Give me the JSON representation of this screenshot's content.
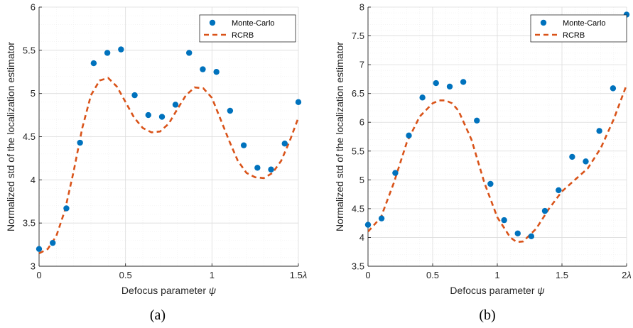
{
  "colors": {
    "monte_carlo": "#0072BD",
    "rcrb": "#D95319",
    "grid_major": "#dcdcdc",
    "grid_minor": "#efefef",
    "axis": "#262626"
  },
  "chart_data": [
    {
      "type": "scatter",
      "caption": "(a)",
      "xlabel": "Defocus parameter ψ",
      "ylabel": "Normalized std of the localization estimator",
      "xlim": [
        0,
        1.5
      ],
      "ylim": [
        3,
        6
      ],
      "xticks": [
        0,
        0.5,
        1,
        1.5
      ],
      "xtick_labels": [
        "0",
        "0.5",
        "1",
        "1.5λ"
      ],
      "yticks": [
        3,
        3.5,
        4,
        4.5,
        5,
        5.5,
        6
      ],
      "ytick_labels": [
        "3",
        "3.5",
        "4",
        "4.5",
        "5",
        "5.5",
        "6"
      ],
      "grid": true,
      "minor_grid": true,
      "legend_position": "top-right",
      "series": [
        {
          "name": "Monte-Carlo",
          "kind": "markers",
          "x": [
            0,
            0.079,
            0.158,
            0.237,
            0.316,
            0.395,
            0.474,
            0.553,
            0.632,
            0.711,
            0.789,
            0.868,
            0.947,
            1.026,
            1.105,
            1.184,
            1.263,
            1.342,
            1.421,
            1.5
          ],
          "y": [
            3.2,
            3.27,
            3.67,
            4.43,
            5.35,
            5.47,
            5.51,
            4.98,
            4.75,
            4.73,
            4.87,
            5.47,
            5.28,
            5.25,
            4.8,
            4.4,
            4.14,
            4.12,
            4.42,
            4.9
          ]
        },
        {
          "name": "RCRB",
          "kind": "dashed-line",
          "x": [
            0,
            0.05,
            0.1,
            0.15,
            0.2,
            0.25,
            0.3,
            0.35,
            0.4,
            0.45,
            0.5,
            0.55,
            0.6,
            0.65,
            0.7,
            0.75,
            0.8,
            0.85,
            0.9,
            0.95,
            1.0,
            1.05,
            1.1,
            1.15,
            1.2,
            1.25,
            1.3,
            1.35,
            1.4,
            1.45,
            1.5
          ],
          "y": [
            3.15,
            3.2,
            3.35,
            3.65,
            4.1,
            4.6,
            4.98,
            5.15,
            5.18,
            5.08,
            4.9,
            4.72,
            4.6,
            4.55,
            4.56,
            4.65,
            4.82,
            4.98,
            5.07,
            5.06,
            4.95,
            4.7,
            4.45,
            4.22,
            4.08,
            4.03,
            4.02,
            4.08,
            4.22,
            4.45,
            4.72
          ]
        }
      ]
    },
    {
      "type": "scatter",
      "caption": "(b)",
      "xlabel": "Defocus parameter ψ",
      "ylabel": "Normalized std of the localization estimator",
      "xlim": [
        0,
        2
      ],
      "ylim": [
        3.5,
        8
      ],
      "xticks": [
        0,
        0.5,
        1,
        1.5,
        2
      ],
      "xtick_labels": [
        "0",
        "0.5",
        "1",
        "1.5",
        "2λ"
      ],
      "yticks": [
        3.5,
        4,
        4.5,
        5,
        5.5,
        6,
        6.5,
        7,
        7.5,
        8
      ],
      "ytick_labels": [
        "3.5",
        "4",
        "4.5",
        "5",
        "5.5",
        "6",
        "6.5",
        "7",
        "7.5",
        "8"
      ],
      "grid": true,
      "minor_grid": true,
      "legend_position": "top-right",
      "series": [
        {
          "name": "Monte-Carlo",
          "kind": "markers",
          "x": [
            0,
            0.105,
            0.211,
            0.316,
            0.421,
            0.526,
            0.632,
            0.737,
            0.842,
            0.947,
            1.053,
            1.158,
            1.263,
            1.368,
            1.474,
            1.579,
            1.684,
            1.789,
            1.895,
            2.0
          ],
          "y": [
            4.22,
            4.33,
            5.12,
            5.77,
            6.43,
            6.68,
            6.62,
            6.7,
            6.03,
            4.93,
            4.3,
            4.07,
            4.02,
            4.46,
            4.82,
            5.4,
            5.32,
            5.85,
            6.59,
            7.87
          ]
        },
        {
          "name": "RCRB",
          "kind": "dashed-line",
          "x": [
            0,
            0.1,
            0.2,
            0.3,
            0.4,
            0.5,
            0.55,
            0.6,
            0.65,
            0.7,
            0.8,
            0.9,
            1.0,
            1.1,
            1.15,
            1.2,
            1.3,
            1.4,
            1.5,
            1.6,
            1.7,
            1.8,
            1.9,
            2.0
          ],
          "y": [
            4.1,
            4.35,
            4.95,
            5.65,
            6.1,
            6.33,
            6.38,
            6.38,
            6.33,
            6.2,
            5.7,
            4.95,
            4.35,
            4.0,
            3.92,
            3.93,
            4.15,
            4.5,
            4.8,
            5.0,
            5.2,
            5.55,
            6.05,
            6.65
          ]
        }
      ]
    }
  ]
}
